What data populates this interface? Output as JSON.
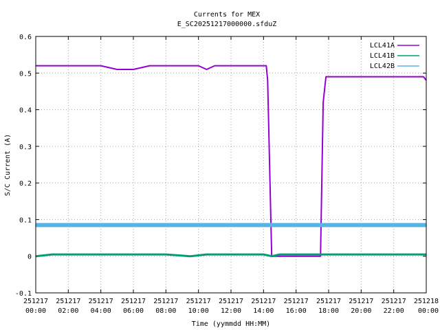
{
  "chart_data": {
    "type": "line",
    "title": "Currents for MEX",
    "subtitle": "E_SC20251217000000.sfduZ",
    "xlabel": "Time (yymmdd HH:MM)",
    "ylabel": "S/C Current (A)",
    "ylim": [
      -0.1,
      0.6
    ],
    "xlim_hours": [
      0,
      24
    ],
    "grid": true,
    "legend_position": "top-right",
    "y_ticks": [
      "-0.1",
      "0",
      "0.1",
      "0.2",
      "0.3",
      "0.4",
      "0.5",
      "0.6"
    ],
    "x_ticks": [
      {
        "date": "251217",
        "time": "00:00"
      },
      {
        "date": "251217",
        "time": "02:00"
      },
      {
        "date": "251217",
        "time": "04:00"
      },
      {
        "date": "251217",
        "time": "06:00"
      },
      {
        "date": "251217",
        "time": "08:00"
      },
      {
        "date": "251217",
        "time": "10:00"
      },
      {
        "date": "251217",
        "time": "12:00"
      },
      {
        "date": "251217",
        "time": "14:00"
      },
      {
        "date": "251217",
        "time": "16:00"
      },
      {
        "date": "251217",
        "time": "18:00"
      },
      {
        "date": "251217",
        "time": "20:00"
      },
      {
        "date": "251217",
        "time": "22:00"
      },
      {
        "date": "251218",
        "time": "00:00"
      }
    ],
    "series": [
      {
        "name": "LCL41A",
        "color": "#9400d3",
        "x": [
          "251217 00:00",
          "251217 02:00",
          "251217 04:00",
          "251217 05:00",
          "251217 06:00",
          "251217 07:00",
          "251217 08:00",
          "251217 10:00",
          "251217 10:30",
          "251217 11:00",
          "251217 12:00",
          "251217 14:00",
          "251217 14:10",
          "251217 14:15",
          "251217 14:30",
          "251217 15:00",
          "251217 16:00",
          "251217 17:00",
          "251217 17:30",
          "251217 17:40",
          "251217 17:50",
          "251217 18:00",
          "251217 20:00",
          "251217 22:00",
          "251217 23:50",
          "251218 00:00"
        ],
        "y": [
          0.52,
          0.52,
          0.52,
          0.51,
          0.51,
          0.52,
          0.52,
          0.52,
          0.51,
          0.52,
          0.52,
          0.52,
          0.52,
          0.48,
          0.0,
          0.0,
          0.0,
          0.0,
          0.0,
          0.42,
          0.49,
          0.49,
          0.49,
          0.49,
          0.49,
          0.48
        ]
      },
      {
        "name": "LCL41B",
        "color": "#009e73",
        "x": [
          "251217 00:00",
          "251217 01:00",
          "251217 02:00",
          "251217 04:00",
          "251217 06:00",
          "251217 08:00",
          "251217 09:30",
          "251217 10:30",
          "251217 12:00",
          "251217 14:00",
          "251217 14:30",
          "251217 15:00",
          "251217 16:00",
          "251217 17:00",
          "251217 18:00",
          "251217 20:00",
          "251217 22:00",
          "251218 00:00"
        ],
        "y": [
          0.0,
          0.005,
          0.005,
          0.005,
          0.005,
          0.005,
          0.0,
          0.005,
          0.005,
          0.005,
          0.0,
          0.005,
          0.005,
          0.005,
          0.005,
          0.005,
          0.005,
          0.005
        ]
      },
      {
        "name": "LCL42B",
        "color": "#56b4e9",
        "x": [
          "251217 00:00",
          "251217 06:00",
          "251217 12:00",
          "251217 18:00",
          "251218 00:00"
        ],
        "y": [
          0.085,
          0.085,
          0.085,
          0.085,
          0.085
        ]
      }
    ]
  }
}
